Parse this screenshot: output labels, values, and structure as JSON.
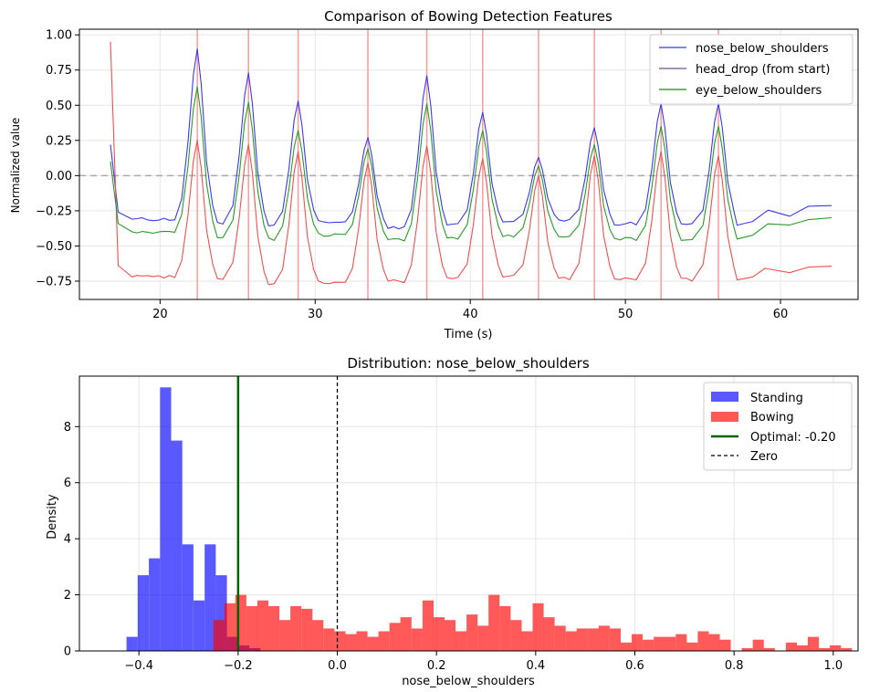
{
  "chart_data": [
    {
      "type": "line",
      "title": "Comparison of Bowing Detection Features",
      "xlabel": "Time (s)",
      "ylabel": "Normalized value",
      "xlim": [
        14.8,
        65.0
      ],
      "ylim": [
        -0.88,
        1.04
      ],
      "xticks": [
        20,
        30,
        40,
        50,
        60
      ],
      "yticks": [
        -0.75,
        -0.5,
        -0.25,
        0.0,
        0.25,
        0.5,
        0.75,
        1.0
      ],
      "ytick_labels": [
        "−0.75",
        "−0.50",
        "−0.25",
        "0.00",
        "0.25",
        "0.50",
        "0.75",
        "1.00"
      ],
      "grid": true,
      "legend_position": "top-right",
      "zero_line": {
        "y": 0.0,
        "color": "#aaaaaa",
        "style": "dashed"
      },
      "bow_markers": {
        "color": "#ff9a9a",
        "x": [
          22.4,
          25.7,
          28.9,
          33.4,
          37.2,
          40.8,
          44.4,
          48.0,
          52.3,
          56.0
        ]
      },
      "series": [
        {
          "name": "nose_below_shoulders",
          "color": "#3a3af0",
          "legend_color": "#5a5af5",
          "baseline_pre": -0.34,
          "baseline": [
            -0.31,
            -0.34,
            -0.36,
            -0.33,
            -0.37,
            -0.34,
            -0.33,
            -0.32,
            -0.34,
            -0.35,
            -0.34
          ],
          "peaks": [
            0.9,
            0.73,
            0.53,
            0.27,
            0.71,
            0.45,
            0.13,
            0.34,
            0.51,
            0.51
          ],
          "start": {
            "x": 16.8,
            "y": 0.22
          },
          "tail": [
            [
              57.2,
              -0.35
            ],
            [
              58.2,
              -0.33
            ],
            [
              59.2,
              -0.25
            ],
            [
              60.6,
              -0.29
            ],
            [
              61.8,
              -0.22
            ],
            [
              63.3,
              -0.21
            ]
          ]
        },
        {
          "name": "head_drop (from start)",
          "color": "#f05050",
          "legend_color": "#8a6f9a",
          "baseline_pre": -0.72,
          "baseline": [
            -0.72,
            -0.73,
            -0.78,
            -0.76,
            -0.75,
            -0.73,
            -0.72,
            -0.73,
            -0.73,
            -0.74,
            -0.74
          ],
          "peaks": [
            0.25,
            0.22,
            0.17,
            0.09,
            0.21,
            0.12,
            0.0,
            0.14,
            0.17,
            0.14
          ],
          "start": {
            "x": 16.8,
            "y": 0.95
          },
          "tail": [
            [
              57.2,
              -0.74
            ],
            [
              58.2,
              -0.72
            ],
            [
              59.0,
              -0.66
            ],
            [
              60.6,
              -0.69
            ],
            [
              61.8,
              -0.65
            ],
            [
              63.3,
              -0.65
            ]
          ]
        },
        {
          "name": "eye_below_shoulders",
          "color": "#2a9a2a",
          "legend_color": "#3aa03a",
          "baseline_pre": -0.42,
          "baseline": [
            -0.4,
            -0.43,
            -0.45,
            -0.42,
            -0.46,
            -0.44,
            -0.43,
            -0.43,
            -0.45,
            -0.45,
            -0.45
          ],
          "peaks": [
            0.63,
            0.52,
            0.32,
            0.19,
            0.51,
            0.32,
            0.07,
            0.22,
            0.35,
            0.35
          ],
          "start": {
            "x": 16.8,
            "y": 0.1
          },
          "tail": [
            [
              57.2,
              -0.45
            ],
            [
              58.2,
              -0.42
            ],
            [
              59.2,
              -0.34
            ],
            [
              60.6,
              -0.35
            ],
            [
              61.8,
              -0.31
            ],
            [
              63.3,
              -0.3
            ]
          ]
        }
      ]
    },
    {
      "type": "histogram",
      "title": "Distribution: nose_below_shoulders",
      "xlabel": "nose_below_shoulders",
      "ylabel": "Density",
      "xlim": [
        -0.52,
        1.05
      ],
      "ylim": [
        0,
        9.8
      ],
      "xticks": [
        -0.4,
        -0.2,
        0.0,
        0.2,
        0.4,
        0.6,
        0.8,
        1.0
      ],
      "xtick_labels": [
        "−0.4",
        "−0.2",
        "0.0",
        "0.2",
        "0.4",
        "0.6",
        "0.8",
        "1.0"
      ],
      "yticks": [
        0,
        2,
        4,
        6,
        8
      ],
      "grid": true,
      "legend_position": "top-right",
      "legend": [
        "Standing",
        "Bowing",
        "Optimal: -0.20",
        "Zero"
      ],
      "series": [
        {
          "name": "Standing",
          "color": "#0000ff",
          "opacity": 0.65,
          "bin_start": -0.425,
          "bin_width": 0.0225,
          "values": [
            0.5,
            2.7,
            3.3,
            9.4,
            7.5,
            3.8,
            1.8,
            3.8,
            2.7,
            0.5,
            0.2,
            0.1
          ]
        },
        {
          "name": "Bowing",
          "color": "#ff0000",
          "opacity": 0.65,
          "bin_start": -0.25,
          "bin_width": 0.0222,
          "values": [
            1.1,
            1.7,
            2.0,
            1.6,
            1.8,
            1.6,
            1.1,
            1.6,
            1.5,
            1.1,
            0.8,
            0.7,
            0.6,
            0.7,
            0.5,
            0.7,
            1.0,
            1.2,
            0.8,
            1.8,
            1.2,
            1.1,
            0.7,
            1.3,
            0.9,
            2.0,
            1.6,
            1.1,
            0.7,
            1.7,
            1.2,
            0.9,
            0.7,
            0.8,
            0.8,
            0.9,
            0.8,
            0.3,
            0.6,
            0.4,
            0.5,
            0.5,
            0.6,
            0.3,
            0.7,
            0.6,
            0.4,
            0.0,
            0.1,
            0.4,
            0.1,
            0.0,
            0.3,
            0.2,
            0.5,
            0.1,
            0.2,
            0.1
          ]
        }
      ],
      "vlines": [
        {
          "name": "Optimal: -0.20",
          "x": -0.2,
          "color": "#006400",
          "style": "solid"
        },
        {
          "name": "Zero",
          "x": 0.0,
          "color": "#000000",
          "style": "dashed"
        }
      ]
    }
  ]
}
